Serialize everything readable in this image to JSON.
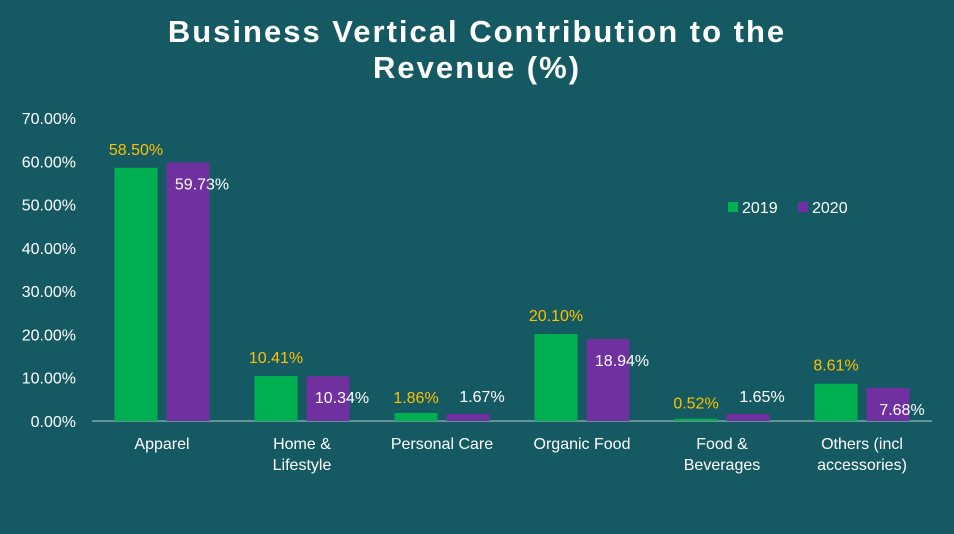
{
  "chart_data": {
    "type": "bar",
    "title_lines": [
      "Business Vertical Contribution to the",
      "Revenue (%)"
    ],
    "categories": [
      [
        "Apparel"
      ],
      [
        "Home &",
        "Lifestyle"
      ],
      [
        "Personal Care"
      ],
      [
        "Organic Food"
      ],
      [
        "Food &",
        "Beverages"
      ],
      [
        "Others (incl",
        "accessories)"
      ]
    ],
    "series": [
      {
        "name": "2019",
        "color": "#00b050",
        "label_color": "#ffc000",
        "values": [
          58.5,
          10.41,
          1.86,
          20.1,
          0.52,
          8.61
        ],
        "labels": [
          "58.50%",
          "10.41%",
          "1.86%",
          "20.10%",
          "0.52%",
          "8.61%"
        ]
      },
      {
        "name": "2020",
        "color": "#7030a0",
        "label_color": "#ffffff",
        "values": [
          59.73,
          10.34,
          1.67,
          18.94,
          1.65,
          7.68
        ],
        "labels": [
          "59.73%",
          "10.34%",
          "1.67%",
          "18.94%",
          "1.65%",
          "7.68%"
        ]
      }
    ],
    "y_ticks": [
      "0.00%",
      "10.00%",
      "20.00%",
      "30.00%",
      "40.00%",
      "50.00%",
      "60.00%",
      "70.00%"
    ],
    "ylim": [
      0,
      70
    ],
    "legend_position": "right-middle",
    "grid": false
  }
}
